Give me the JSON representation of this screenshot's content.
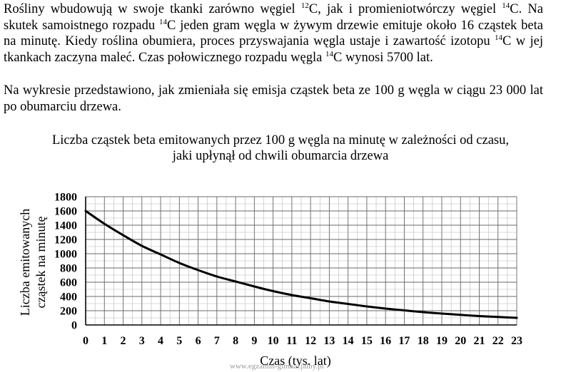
{
  "text": {
    "p1": {
      "a": "Rośliny wbudowują w swoje tkanki zarówno węgiel ",
      "sup1": "12",
      "b": "C, jak i promieniotwórczy węgiel ",
      "sup2": "14",
      "c": "C. Na skutek samoistnego rozpadu ",
      "sup3": "14",
      "d": "C jeden gram węgla w żywym drzewie emituje około 16 cząstek beta na minutę. Kiedy roślina obumiera, proces przyswajania węgla ustaje i zawartość izotopu ",
      "sup4": "14",
      "e": "C w jej tkankach zaczyna maleć. Czas połowicznego rozpadu węgla ",
      "sup5": "14",
      "f": "C wynosi 5700 lat."
    },
    "p2": "Na wykresie przedstawiono, jak zmieniała się emisja cząstek beta ze 100 g węgla w ciągu 23 000 lat po obumarciu drzewa."
  },
  "chart_data": {
    "type": "line",
    "title_line1": "Liczba cząstek beta emitowanych przez 100 g węgla na minutę w zależności od czasu,",
    "title_line2": "jaki upłynął od chwili obumarcia drzewa",
    "xlabel": "Czas (tys. lat)",
    "ylabel_line1": "Liczba emitowanych",
    "ylabel_line2": "cząstek na minutę",
    "xlim": [
      0,
      23
    ],
    "ylim": [
      0,
      1800
    ],
    "x_ticks": [
      "0",
      "1",
      "2",
      "3",
      "4",
      "5",
      "6",
      "7",
      "8",
      "9",
      "10",
      "11",
      "12",
      "13",
      "14",
      "15",
      "16",
      "17",
      "18",
      "19",
      "20",
      "21",
      "22",
      "23"
    ],
    "y_ticks": [
      "0",
      "200",
      "400",
      "600",
      "800",
      "1000",
      "1200",
      "1400",
      "1600",
      "1800"
    ],
    "grid": true,
    "series": [
      {
        "x": [
          0,
          1,
          2,
          3,
          4,
          5,
          6,
          7,
          8,
          9,
          10,
          11,
          12,
          13,
          14,
          15,
          16,
          17,
          18,
          19,
          20,
          21,
          22,
          23
        ],
        "y": [
          1600,
          1420,
          1260,
          1110,
          990,
          870,
          770,
          680,
          610,
          540,
          475,
          420,
          375,
          330,
          295,
          260,
          230,
          205,
          180,
          160,
          142,
          125,
          112,
          100
        ]
      }
    ],
    "line_color": "#000000"
  },
  "watermark": "www.egzamin-gimnazjalny.pl"
}
